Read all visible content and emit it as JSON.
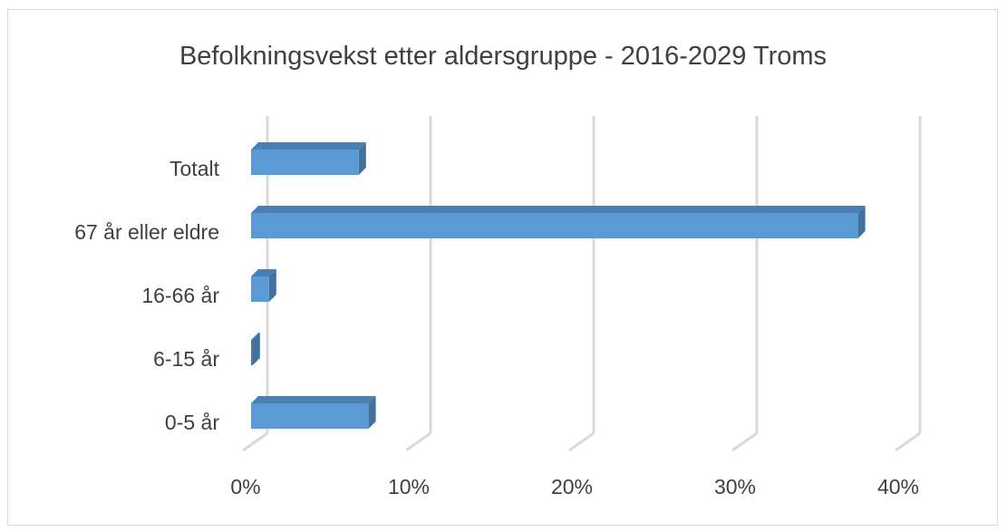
{
  "chart_data": {
    "type": "bar",
    "orientation": "horizontal",
    "style": "3d-clustered-bar",
    "title": "Befolkningsvekst etter aldersgruppe - 2016-2029 Troms",
    "categories": [
      "Totalt",
      "67 år eller eldre",
      "16-66 år",
      "6-15 år",
      "0-5 år"
    ],
    "values": [
      6.6,
      37.2,
      1.1,
      0.1,
      7.2
    ],
    "value_unit": "%",
    "xlim": [
      0,
      40
    ],
    "x_ticks": [
      0,
      10,
      20,
      30,
      40
    ],
    "x_tick_labels": [
      "0%",
      "10%",
      "20%",
      "30%",
      "40%"
    ],
    "xlabel": "",
    "ylabel": "",
    "grid": "vertical major gridlines",
    "legend": "none",
    "colors": {
      "bar_front": "#5b9bd5",
      "bar_side": "#41719c",
      "bar_top": "#4a80b6",
      "grid": "#d9d9d9",
      "text": "#404040",
      "frame": "#d9d9d9"
    }
  }
}
